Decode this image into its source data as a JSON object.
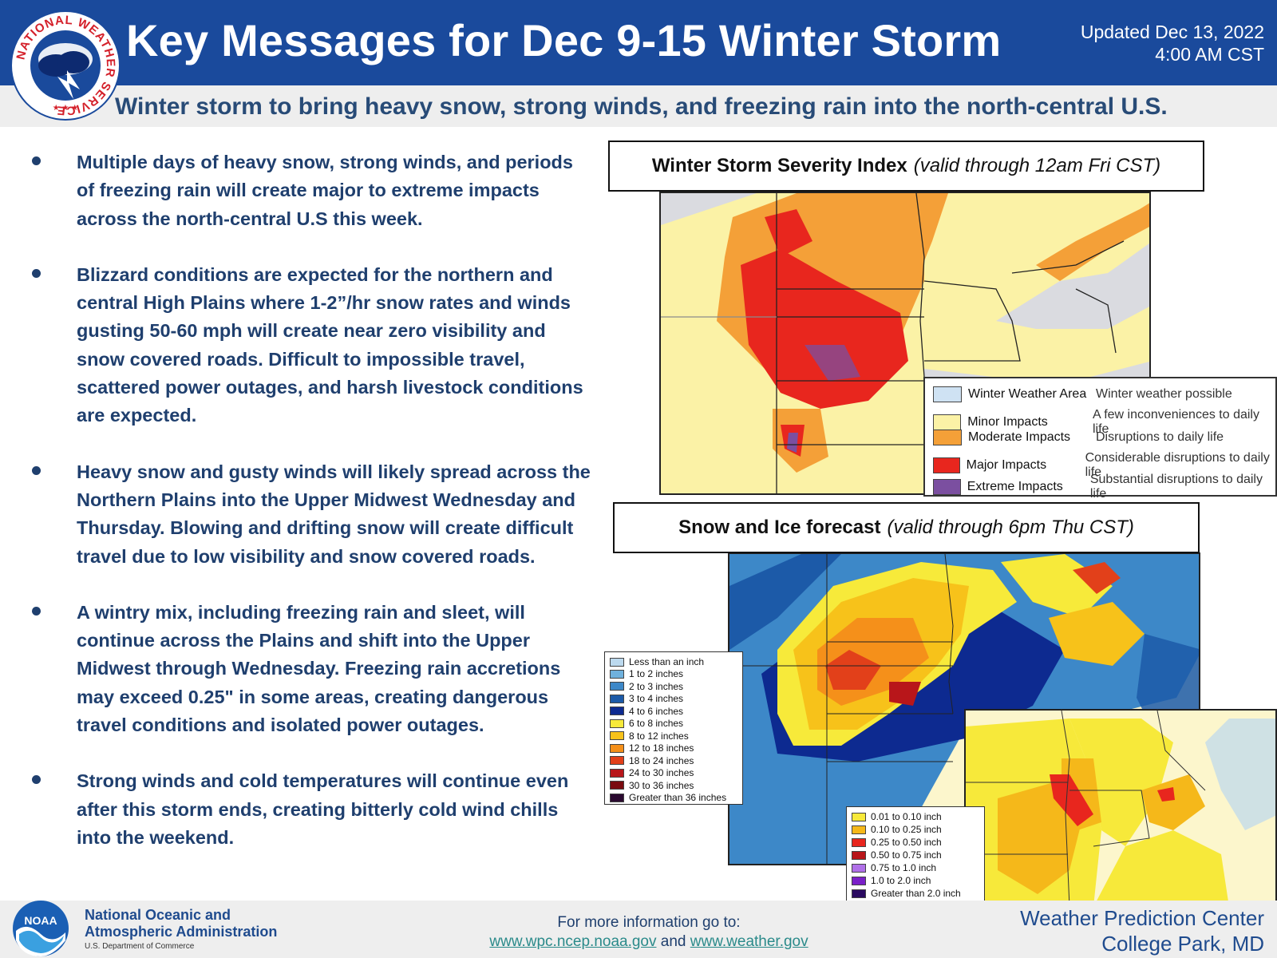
{
  "header": {
    "title": "Key Messages for Dec 9-15 Winter Storm",
    "updated_line1": "Updated Dec 13, 2022",
    "updated_line2": "4:00 AM CST",
    "subtitle": "Winter storm to bring heavy snow, strong winds, and freezing rain into the north-central U.S.",
    "logo_text": "NATIONAL WEATHER SERVICE"
  },
  "bullets": [
    "Multiple days of heavy snow, strong winds, and periods of freezing rain will create major to extreme impacts across the north-central U.S this week.",
    "Blizzard conditions are expected for the northern and central High Plains where 1-2”/hr snow rates and winds gusting 50-60 mph will create near zero visibility and snow covered roads. Difficult to impossible travel, scattered power outages, and harsh livestock conditions are expected.",
    "Heavy snow and gusty winds will likely spread across the Northern Plains into the Upper Midwest Wednesday and Thursday.  Blowing and drifting snow will create difficult travel due to low visibility and snow covered roads.",
    "A wintry mix, including freezing rain and sleet, will continue across the Plains and shift into the Upper Midwest through Wednesday. Freezing rain accretions may exceed 0.25\" in some areas, creating dangerous travel conditions and isolated power outages.",
    "Strong winds and cold temperatures will continue even after this storm ends, creating bitterly cold wind chills into the weekend."
  ],
  "wssi": {
    "label_bold": "Winter Storm Severity Index",
    "label_italic": "(valid through 12am Fri CST)",
    "legend": [
      {
        "name": "Winter Weather Area",
        "desc": "Winter weather possible",
        "color": "#cfe2f3"
      },
      {
        "name": "Minor Impacts",
        "desc": "A few inconveniences to daily life",
        "color": "#fbf2a6"
      },
      {
        "name": "Moderate Impacts",
        "desc": "Disruptions to daily life",
        "color": "#f4a038"
      },
      {
        "name": "Major Impacts",
        "desc": "Considerable disruptions to daily life",
        "color": "#e8261e"
      },
      {
        "name": "Extreme Impacts",
        "desc": "Substantial disruptions to daily life",
        "color": "#7b4fa0"
      }
    ]
  },
  "snow_ice": {
    "label_bold": "Snow and Ice forecast",
    "label_italic": "(valid through 6pm Thu CST)",
    "snow_legend": [
      {
        "label": "Less than an inch",
        "color": "#bcd9ee"
      },
      {
        "label": "1 to 2 inches",
        "color": "#6fb1dd"
      },
      {
        "label": "2 to 3 inches",
        "color": "#3d88c8"
      },
      {
        "label": "3 to 4 inches",
        "color": "#1c5aa8"
      },
      {
        "label": "4 to 6 inches",
        "color": "#0d2a90"
      },
      {
        "label": "6 to 8 inches",
        "color": "#f7ea3a"
      },
      {
        "label": "8 to 12 inches",
        "color": "#f7c21a"
      },
      {
        "label": "12 to 18 inches",
        "color": "#f5901a"
      },
      {
        "label": "18 to 24 inches",
        "color": "#e2401a"
      },
      {
        "label": "24 to 30 inches",
        "color": "#b8161a"
      },
      {
        "label": "30 to 36 inches",
        "color": "#7a0a10"
      },
      {
        "label": "Greater than 36 inches",
        "color": "#2a0a30"
      }
    ],
    "ice_legend": [
      {
        "label": "0.01 to 0.10 inch",
        "color": "#f7e93a"
      },
      {
        "label": "0.10 to 0.25 inch",
        "color": "#f5b81a"
      },
      {
        "label": "0.25 to 0.50 inch",
        "color": "#e8261e"
      },
      {
        "label": "0.50 to 0.75 inch",
        "color": "#b8161a"
      },
      {
        "label": "0.75 to 1.0 inch",
        "color": "#b070e8"
      },
      {
        "label": "1.0 to 2.0 inch",
        "color": "#7a20c8"
      },
      {
        "label": "Greater than 2.0 inch",
        "color": "#2a0a60"
      }
    ]
  },
  "footer": {
    "noaa_line1": "National Oceanic and",
    "noaa_line2": "Atmospheric Administration",
    "noaa_dept": "U.S. Department of Commerce",
    "noaa_logo_text": "NOAA",
    "more_info": "For more information go to:",
    "link1": "www.wpc.ncep.noaa.gov",
    "link_and": "and",
    "link2": "www.weather.gov",
    "wpc_line1": "Weather Prediction Center",
    "wpc_line2": "College Park, MD"
  }
}
